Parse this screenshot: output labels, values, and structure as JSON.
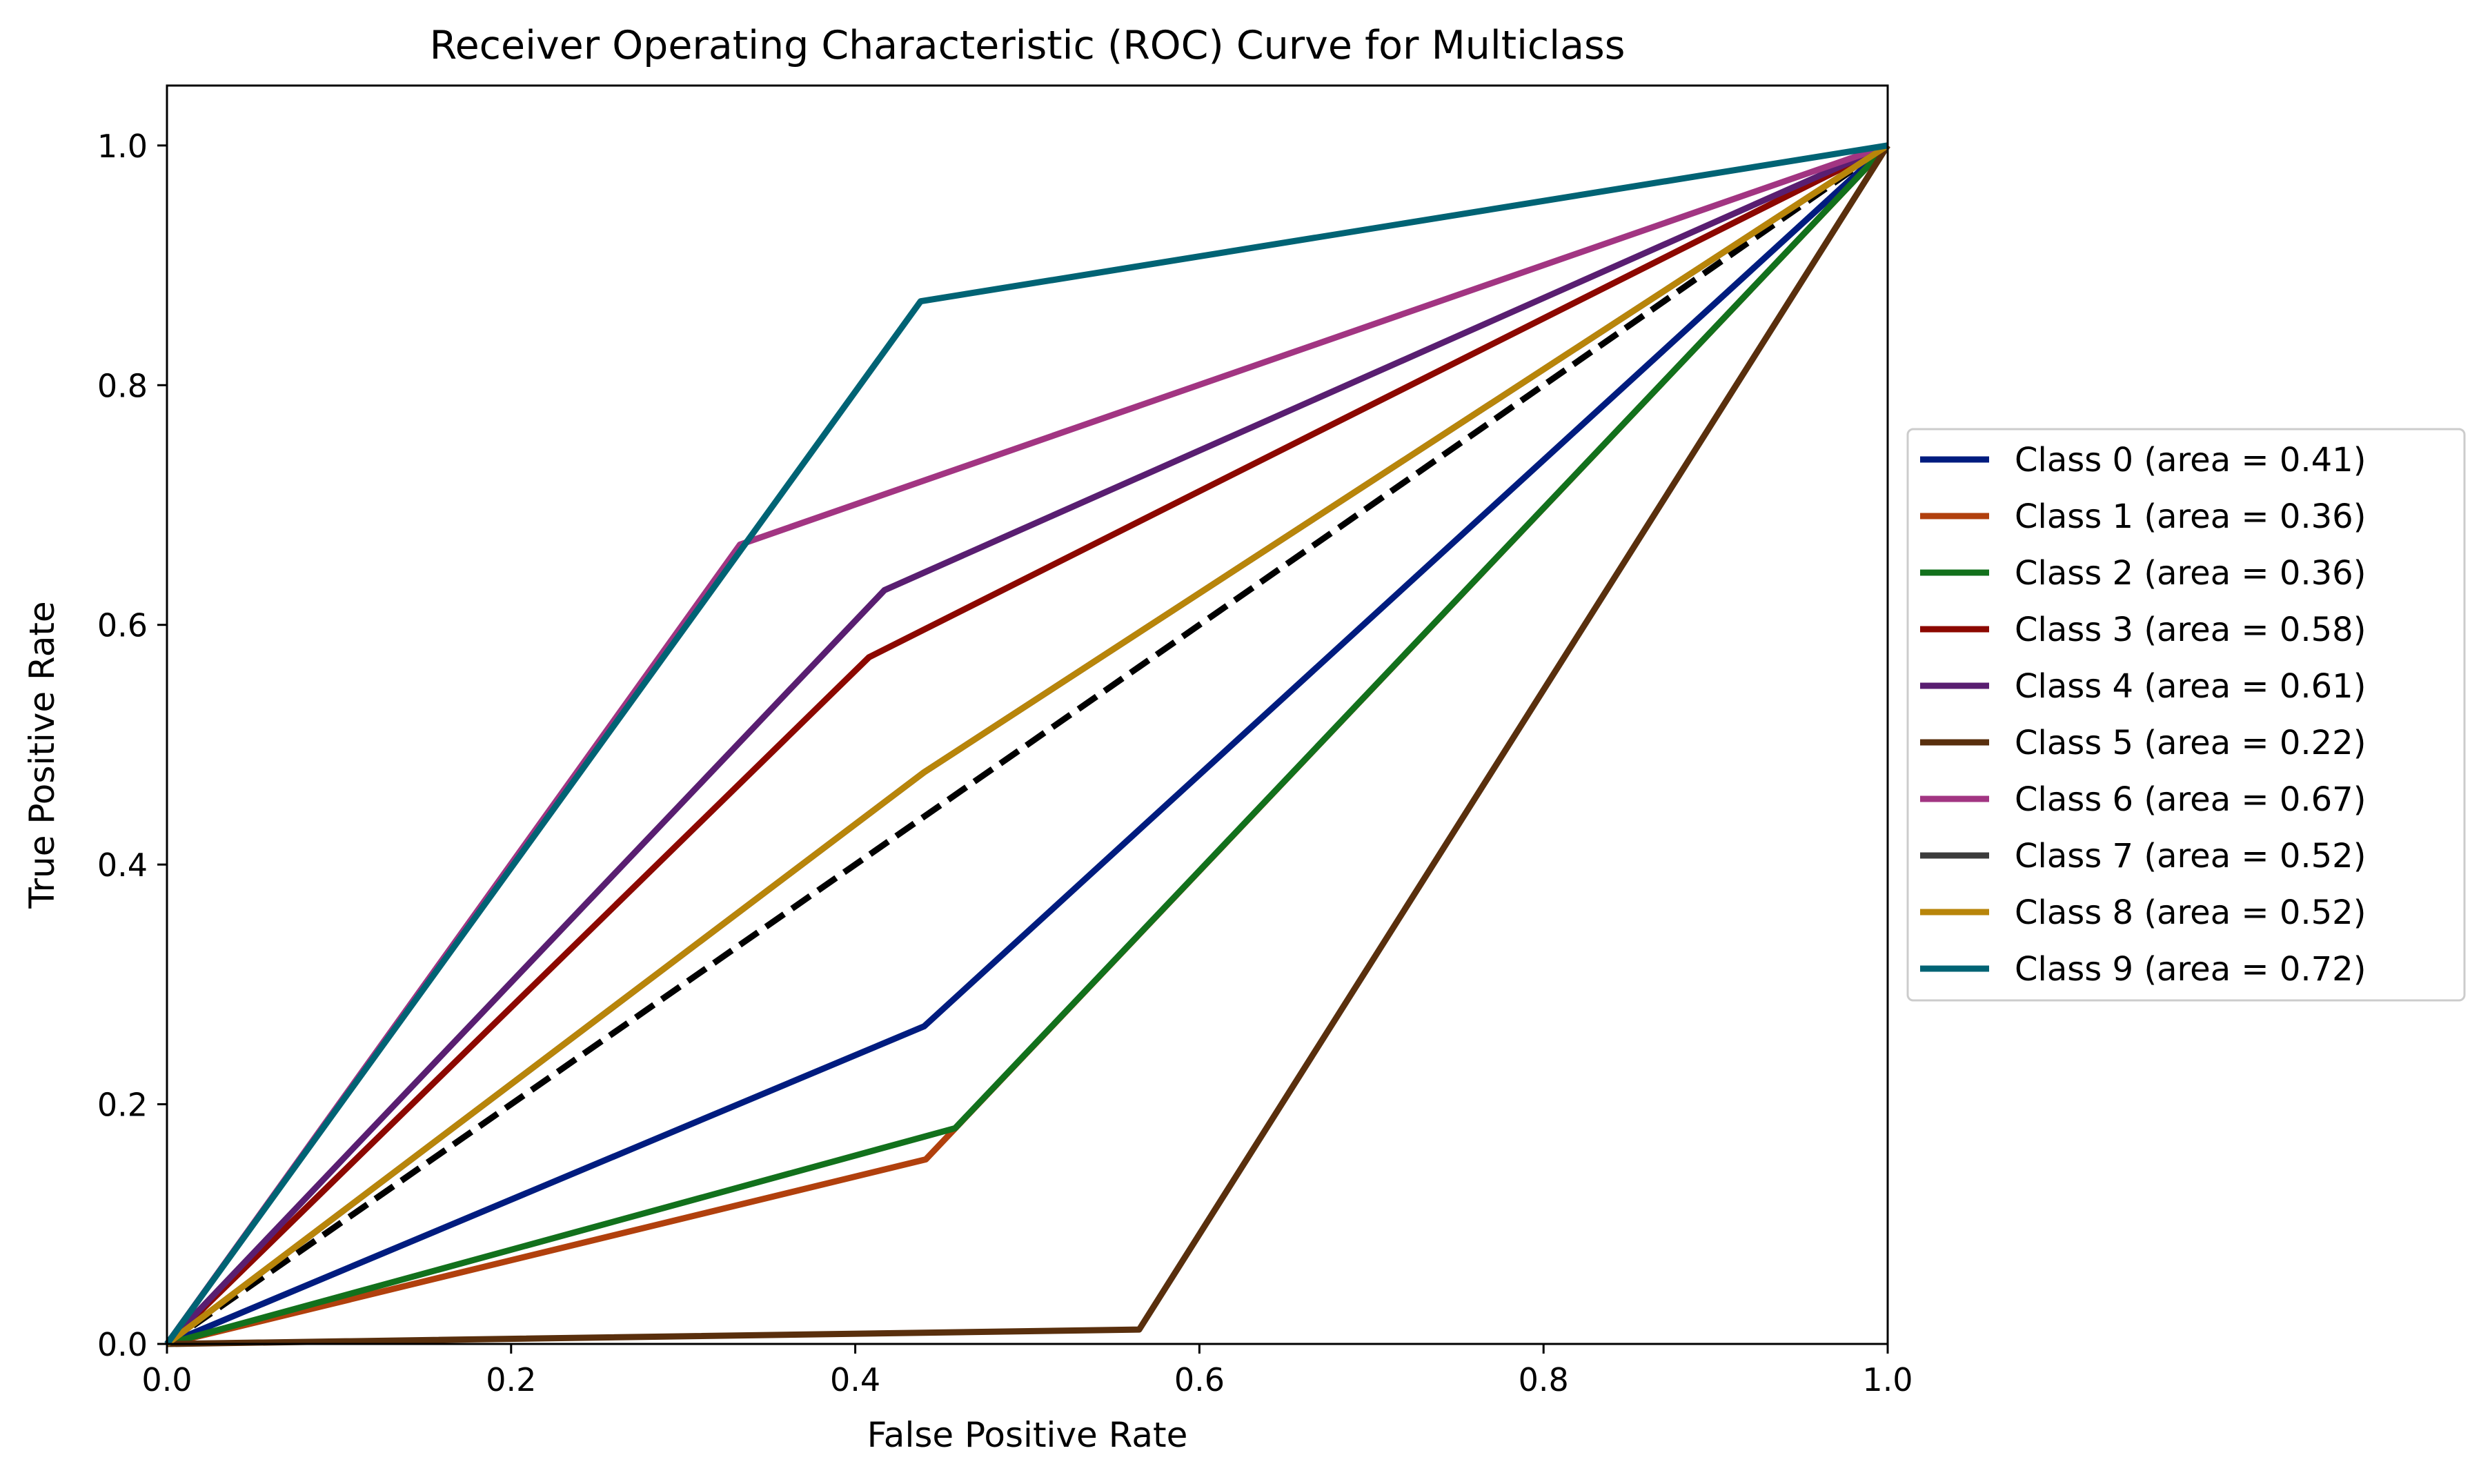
{
  "chart_data": {
    "type": "line",
    "title": "Receiver Operating Characteristic (ROC) Curve for Multiclass",
    "xlabel": "False Positive Rate",
    "ylabel": "True Positive Rate",
    "xlim": [
      0.0,
      1.0
    ],
    "ylim": [
      0.0,
      1.05
    ],
    "xticks": [
      "0.0",
      "0.2",
      "0.4",
      "0.6",
      "0.8",
      "1.0"
    ],
    "yticks": [
      "0.0",
      "0.2",
      "0.4",
      "0.6",
      "0.8",
      "1.0"
    ],
    "grid": false,
    "legend_position": "center-left outside right",
    "diagonal": {
      "x": [
        0,
        1
      ],
      "y": [
        0,
        1
      ],
      "color": "#000000",
      "style": "dashed"
    },
    "series": [
      {
        "name": "Class 0 (area = 0.41)",
        "color": "#001c7f",
        "x": [
          0,
          0.44,
          1
        ],
        "y": [
          0,
          0.265,
          1
        ]
      },
      {
        "name": "Class 1 (area = 0.36)",
        "color": "#b1400d",
        "x": [
          0,
          0.441,
          1
        ],
        "y": [
          0,
          0.154,
          1
        ]
      },
      {
        "name": "Class 2 (area = 0.36)",
        "color": "#12711c",
        "x": [
          0,
          0.458,
          1
        ],
        "y": [
          0,
          0.18,
          1
        ]
      },
      {
        "name": "Class 3 (area = 0.58)",
        "color": "#8c0800",
        "x": [
          0,
          0.408,
          1
        ],
        "y": [
          0,
          0.573,
          1
        ]
      },
      {
        "name": "Class 4 (area = 0.61)",
        "color": "#591e71",
        "x": [
          0,
          0.417,
          1
        ],
        "y": [
          0,
          0.629,
          1
        ]
      },
      {
        "name": "Class 5 (area = 0.22)",
        "color": "#592f0d",
        "x": [
          0,
          0.565,
          1
        ],
        "y": [
          0,
          0.012,
          1
        ]
      },
      {
        "name": "Class 6 (area = 0.67)",
        "color": "#a23582",
        "x": [
          0,
          0.333,
          1
        ],
        "y": [
          0,
          0.667,
          1
        ]
      },
      {
        "name": "Class 7 (area = 0.52)",
        "color": "#3c3c3c",
        "x": [
          0,
          0.44,
          1
        ],
        "y": [
          0,
          0.477,
          1
        ]
      },
      {
        "name": "Class 8 (area = 0.52)",
        "color": "#b8850a",
        "x": [
          0,
          0.44,
          1
        ],
        "y": [
          0,
          0.477,
          1
        ]
      },
      {
        "name": "Class 9 (area = 0.72)",
        "color": "#006374",
        "x": [
          0,
          0.438,
          1
        ],
        "y": [
          0,
          0.87,
          1
        ]
      }
    ]
  }
}
